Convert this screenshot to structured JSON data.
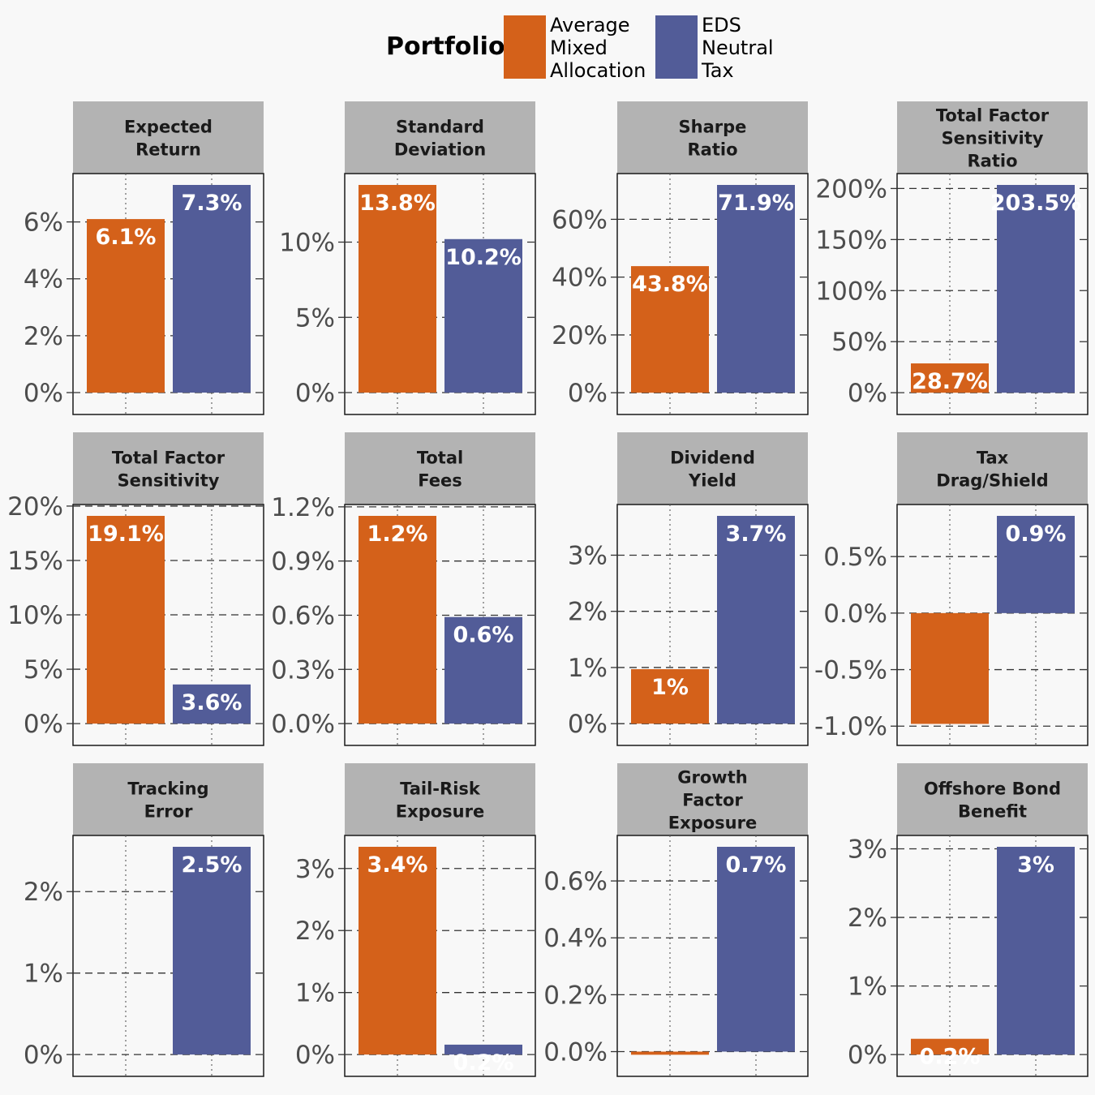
{
  "legend": {
    "title": "Portfolio",
    "items": [
      {
        "lines": [
          "Average",
          "Mixed",
          "Allocation"
        ],
        "color": "#d4611a"
      },
      {
        "lines": [
          "EDS",
          "Neutral",
          "Tax"
        ],
        "color": "#525c98"
      }
    ]
  },
  "colors": {
    "strip": "#b3b3b3",
    "background": "#f8f8f8",
    "series_a": "#d4611a",
    "series_b": "#525c98"
  },
  "chart_data": [
    {
      "type": "bar",
      "title": "Expected Return",
      "title_lines": [
        "Expected",
        "Return"
      ],
      "categories": [
        "Average Mixed Allocation",
        "EDS Neutral Tax"
      ],
      "values": [
        6.1,
        7.3
      ],
      "data_labels": [
        "6.1%",
        "7.3%"
      ],
      "ylim": [
        -0.37,
        7.3
      ],
      "yticks": [
        0,
        2,
        4,
        6
      ],
      "ytick_labels": [
        "0%",
        "2%",
        "4%",
        "6%"
      ]
    },
    {
      "type": "bar",
      "title": "Standard Deviation",
      "title_lines": [
        "Standard",
        "Deviation"
      ],
      "categories": [
        "Average Mixed Allocation",
        "EDS Neutral Tax"
      ],
      "values": [
        13.8,
        10.2
      ],
      "data_labels": [
        "13.8%",
        "10.2%"
      ],
      "ylim": [
        -0.7,
        13.8
      ],
      "yticks": [
        0,
        5,
        10
      ],
      "ytick_labels": [
        "0%",
        "5%",
        "10%"
      ]
    },
    {
      "type": "bar",
      "title": "Sharpe Ratio",
      "title_lines": [
        "Sharpe",
        "Ratio"
      ],
      "categories": [
        "Average Mixed Allocation",
        "EDS Neutral Tax"
      ],
      "values": [
        43.8,
        71.9
      ],
      "data_labels": [
        "43.8%",
        "71.9%"
      ],
      "ylim": [
        -3.6,
        71.9
      ],
      "yticks": [
        0,
        20,
        40,
        60
      ],
      "ytick_labels": [
        "0%",
        "20%",
        "40%",
        "60%"
      ]
    },
    {
      "type": "bar",
      "title": "Total Factor Sensitivity Ratio",
      "title_lines": [
        "Total Factor",
        "Sensitivity",
        "Ratio"
      ],
      "categories": [
        "Average Mixed Allocation",
        "EDS Neutral Tax"
      ],
      "values": [
        28.7,
        203.5
      ],
      "data_labels": [
        "28.7%",
        "203.5%"
      ],
      "ylim": [
        -10.2,
        203.5
      ],
      "yticks": [
        0,
        50,
        100,
        150,
        200
      ],
      "ytick_labels": [
        "0%",
        "50%",
        "100%",
        "150%",
        "200%"
      ]
    },
    {
      "type": "bar",
      "title": "Total Factor Sensitivity",
      "title_lines": [
        "Total Factor",
        "Sensitivity"
      ],
      "categories": [
        "Average Mixed Allocation",
        "EDS Neutral Tax"
      ],
      "values": [
        19.1,
        3.6
      ],
      "data_labels": [
        "19.1%",
        "3.6%"
      ],
      "ylim": [
        -0.96,
        19.1
      ],
      "yticks": [
        0,
        5,
        10,
        15,
        20
      ],
      "ytick_labels": [
        "0%",
        "5%",
        "10%",
        "15%",
        "20%"
      ]
    },
    {
      "type": "bar",
      "title": "Total Fees",
      "title_lines": [
        "Total",
        "Fees"
      ],
      "categories": [
        "Average Mixed Allocation",
        "EDS Neutral Tax"
      ],
      "values": [
        1.15,
        0.59
      ],
      "data_labels": [
        "1.2%",
        "0.6%"
      ],
      "ylim": [
        -0.058,
        1.15
      ],
      "yticks": [
        0,
        0.3,
        0.6,
        0.9,
        1.2
      ],
      "ytick_labels": [
        "0.0%",
        "0.3%",
        "0.6%",
        "0.9%",
        "1.2%"
      ]
    },
    {
      "type": "bar",
      "title": "Dividend Yield",
      "title_lines": [
        "Dividend",
        "Yield"
      ],
      "categories": [
        "Average Mixed Allocation",
        "EDS Neutral Tax"
      ],
      "values": [
        0.97,
        3.7
      ],
      "data_labels": [
        "1%",
        "3.7%"
      ],
      "ylim": [
        -0.185,
        3.7
      ],
      "yticks": [
        0,
        1,
        2,
        3
      ],
      "ytick_labels": [
        "0%",
        "1%",
        "2%",
        "3%"
      ]
    },
    {
      "type": "bar",
      "title": "Tax Drag/Shield",
      "title_lines": [
        "Tax",
        "Drag/Shield"
      ],
      "categories": [
        "Average Mixed Allocation",
        "EDS Neutral Tax"
      ],
      "values": [
        -0.98,
        0.86
      ],
      "data_labels": [
        "",
        "0.9%"
      ],
      "ylim": [
        -1.07,
        0.86
      ],
      "yticks": [
        -1.0,
        -0.5,
        0.0,
        0.5
      ],
      "ytick_labels": [
        "-1.0%",
        "-0.5%",
        "0.0%",
        "0.5%"
      ]
    },
    {
      "type": "bar",
      "title": "Tracking Error",
      "title_lines": [
        "Tracking",
        "Error"
      ],
      "categories": [
        "Average Mixed Allocation",
        "EDS Neutral Tax"
      ],
      "values": [
        0,
        2.55
      ],
      "data_labels": [
        "",
        "2.5%"
      ],
      "ylim": [
        -0.128,
        2.55
      ],
      "yticks": [
        0,
        1,
        2
      ],
      "ytick_labels": [
        "0%",
        "1%",
        "2%"
      ]
    },
    {
      "type": "bar",
      "title": "Tail-Risk Exposure",
      "title_lines": [
        "Tail-Risk",
        "Exposure"
      ],
      "categories": [
        "Average Mixed Allocation",
        "EDS Neutral Tax"
      ],
      "values": [
        3.35,
        0.16
      ],
      "data_labels": [
        "3.4%",
        "0.2%"
      ],
      "ylim": [
        -0.168,
        3.35
      ],
      "yticks": [
        0,
        1,
        2,
        3
      ],
      "ytick_labels": [
        "0%",
        "1%",
        "2%",
        "3%"
      ]
    },
    {
      "type": "bar",
      "title": "Growth Factor Exposure",
      "title_lines": [
        "Growth",
        "Factor",
        "Exposure"
      ],
      "categories": [
        "Average Mixed Allocation",
        "EDS Neutral Tax"
      ],
      "values": [
        -0.011,
        0.72
      ],
      "data_labels": [
        "",
        "0.7%"
      ],
      "ylim": [
        -0.047,
        0.72
      ],
      "yticks": [
        0,
        0.2,
        0.4,
        0.6
      ],
      "ytick_labels": [
        "0.0%",
        "0.2%",
        "0.4%",
        "0.6%"
      ]
    },
    {
      "type": "bar",
      "title": "Offshore Bond Benefit",
      "title_lines": [
        "Offshore Bond",
        "Benefit"
      ],
      "categories": [
        "Average Mixed Allocation",
        "EDS Neutral Tax"
      ],
      "values": [
        0.23,
        3.03
      ],
      "data_labels": [
        "0.2%",
        "3%"
      ],
      "ylim": [
        -0.152,
        3.03
      ],
      "yticks": [
        0,
        1,
        2,
        3
      ],
      "ytick_labels": [
        "0%",
        "1%",
        "2%",
        "3%"
      ]
    }
  ]
}
